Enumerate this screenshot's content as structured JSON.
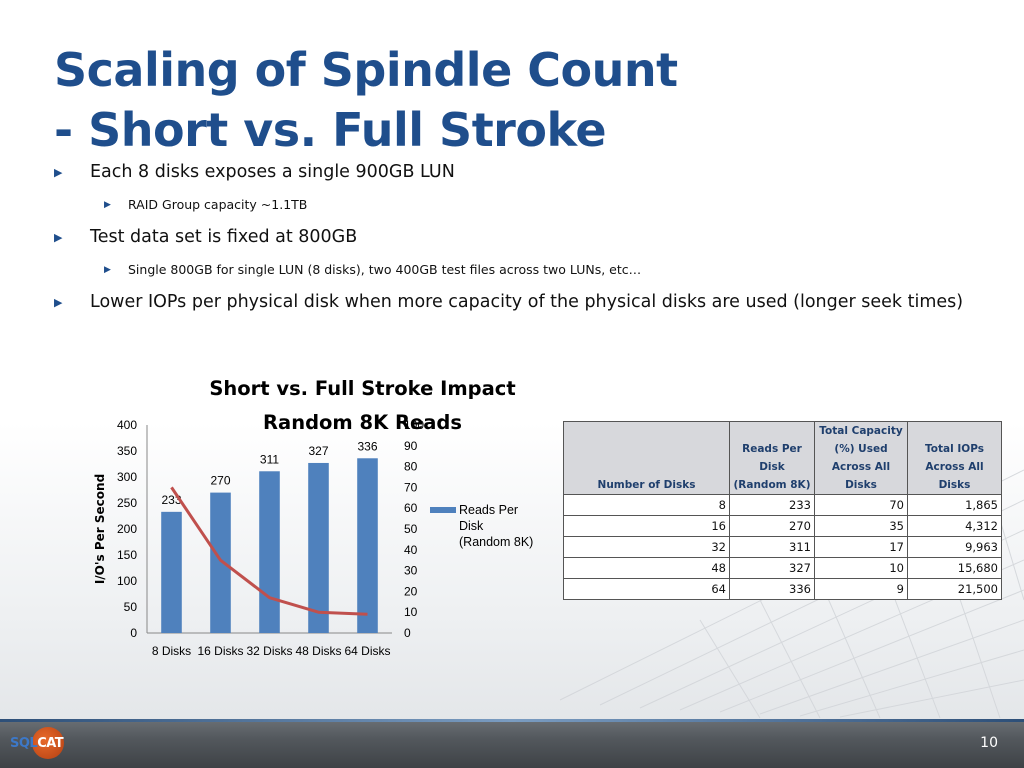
{
  "slide": {
    "title_line1": "Scaling of Spindle Count",
    "title_line2": "- Short vs. Full Stroke",
    "bullets": [
      {
        "level": 1,
        "text": "Each 8 disks exposes a single 900GB LUN"
      },
      {
        "level": 2,
        "text": "RAID Group capacity ~1.1TB"
      },
      {
        "level": 1,
        "text": "Test data set is fixed at 800GB"
      },
      {
        "level": 2,
        "text": "Single 800GB for single LUN (8 disks), two 400GB test files across two LUNs, etc…"
      },
      {
        "level": 1,
        "text": "Lower IOPs per physical disk when more capacity of the physical disks are used (longer seek times)"
      }
    ],
    "page_number": "10",
    "logo_text_a": "SQL",
    "logo_text_b": "CAT"
  },
  "chart_data": {
    "type": "bar",
    "title_line1": "Short vs. Full Stroke Impact",
    "title_line2": "Random 8K Reads",
    "categories": [
      "8 Disks",
      "16 Disks",
      "32 Disks",
      "48 Disks",
      "64 Disks"
    ],
    "series": [
      {
        "name": "Reads Per Disk (Random 8K)",
        "type": "bar",
        "axis": "left",
        "values": [
          233,
          270,
          311,
          327,
          336
        ],
        "color": "#4f81bd"
      },
      {
        "type": "line",
        "axis": "right",
        "values": [
          70,
          35,
          17,
          10,
          9
        ],
        "color": "#c0504d"
      }
    ],
    "ylabel": "I/O's Per Second",
    "ylim": [
      0,
      400
    ],
    "yticks": [
      "0",
      "50",
      "100",
      "150",
      "200",
      "250",
      "300",
      "350",
      "400"
    ],
    "y2lim": [
      0,
      100
    ],
    "y2ticks": [
      "0",
      "10",
      "20",
      "30",
      "40",
      "50",
      "60",
      "70",
      "80",
      "90",
      "100"
    ],
    "legend": "right",
    "grid": false
  },
  "table": {
    "headers": [
      "Number of Disks",
      "Reads Per Disk (Random 8K)",
      "Total Capacity (%) Used Across All Disks",
      "Total IOPs Across All Disks"
    ],
    "rows": [
      [
        "8",
        "233",
        "70",
        "1,865"
      ],
      [
        "16",
        "270",
        "35",
        "4,312"
      ],
      [
        "32",
        "311",
        "17",
        "9,963"
      ],
      [
        "48",
        "327",
        "10",
        "15,680"
      ],
      [
        "64",
        "336",
        "9",
        "21,500"
      ]
    ]
  }
}
